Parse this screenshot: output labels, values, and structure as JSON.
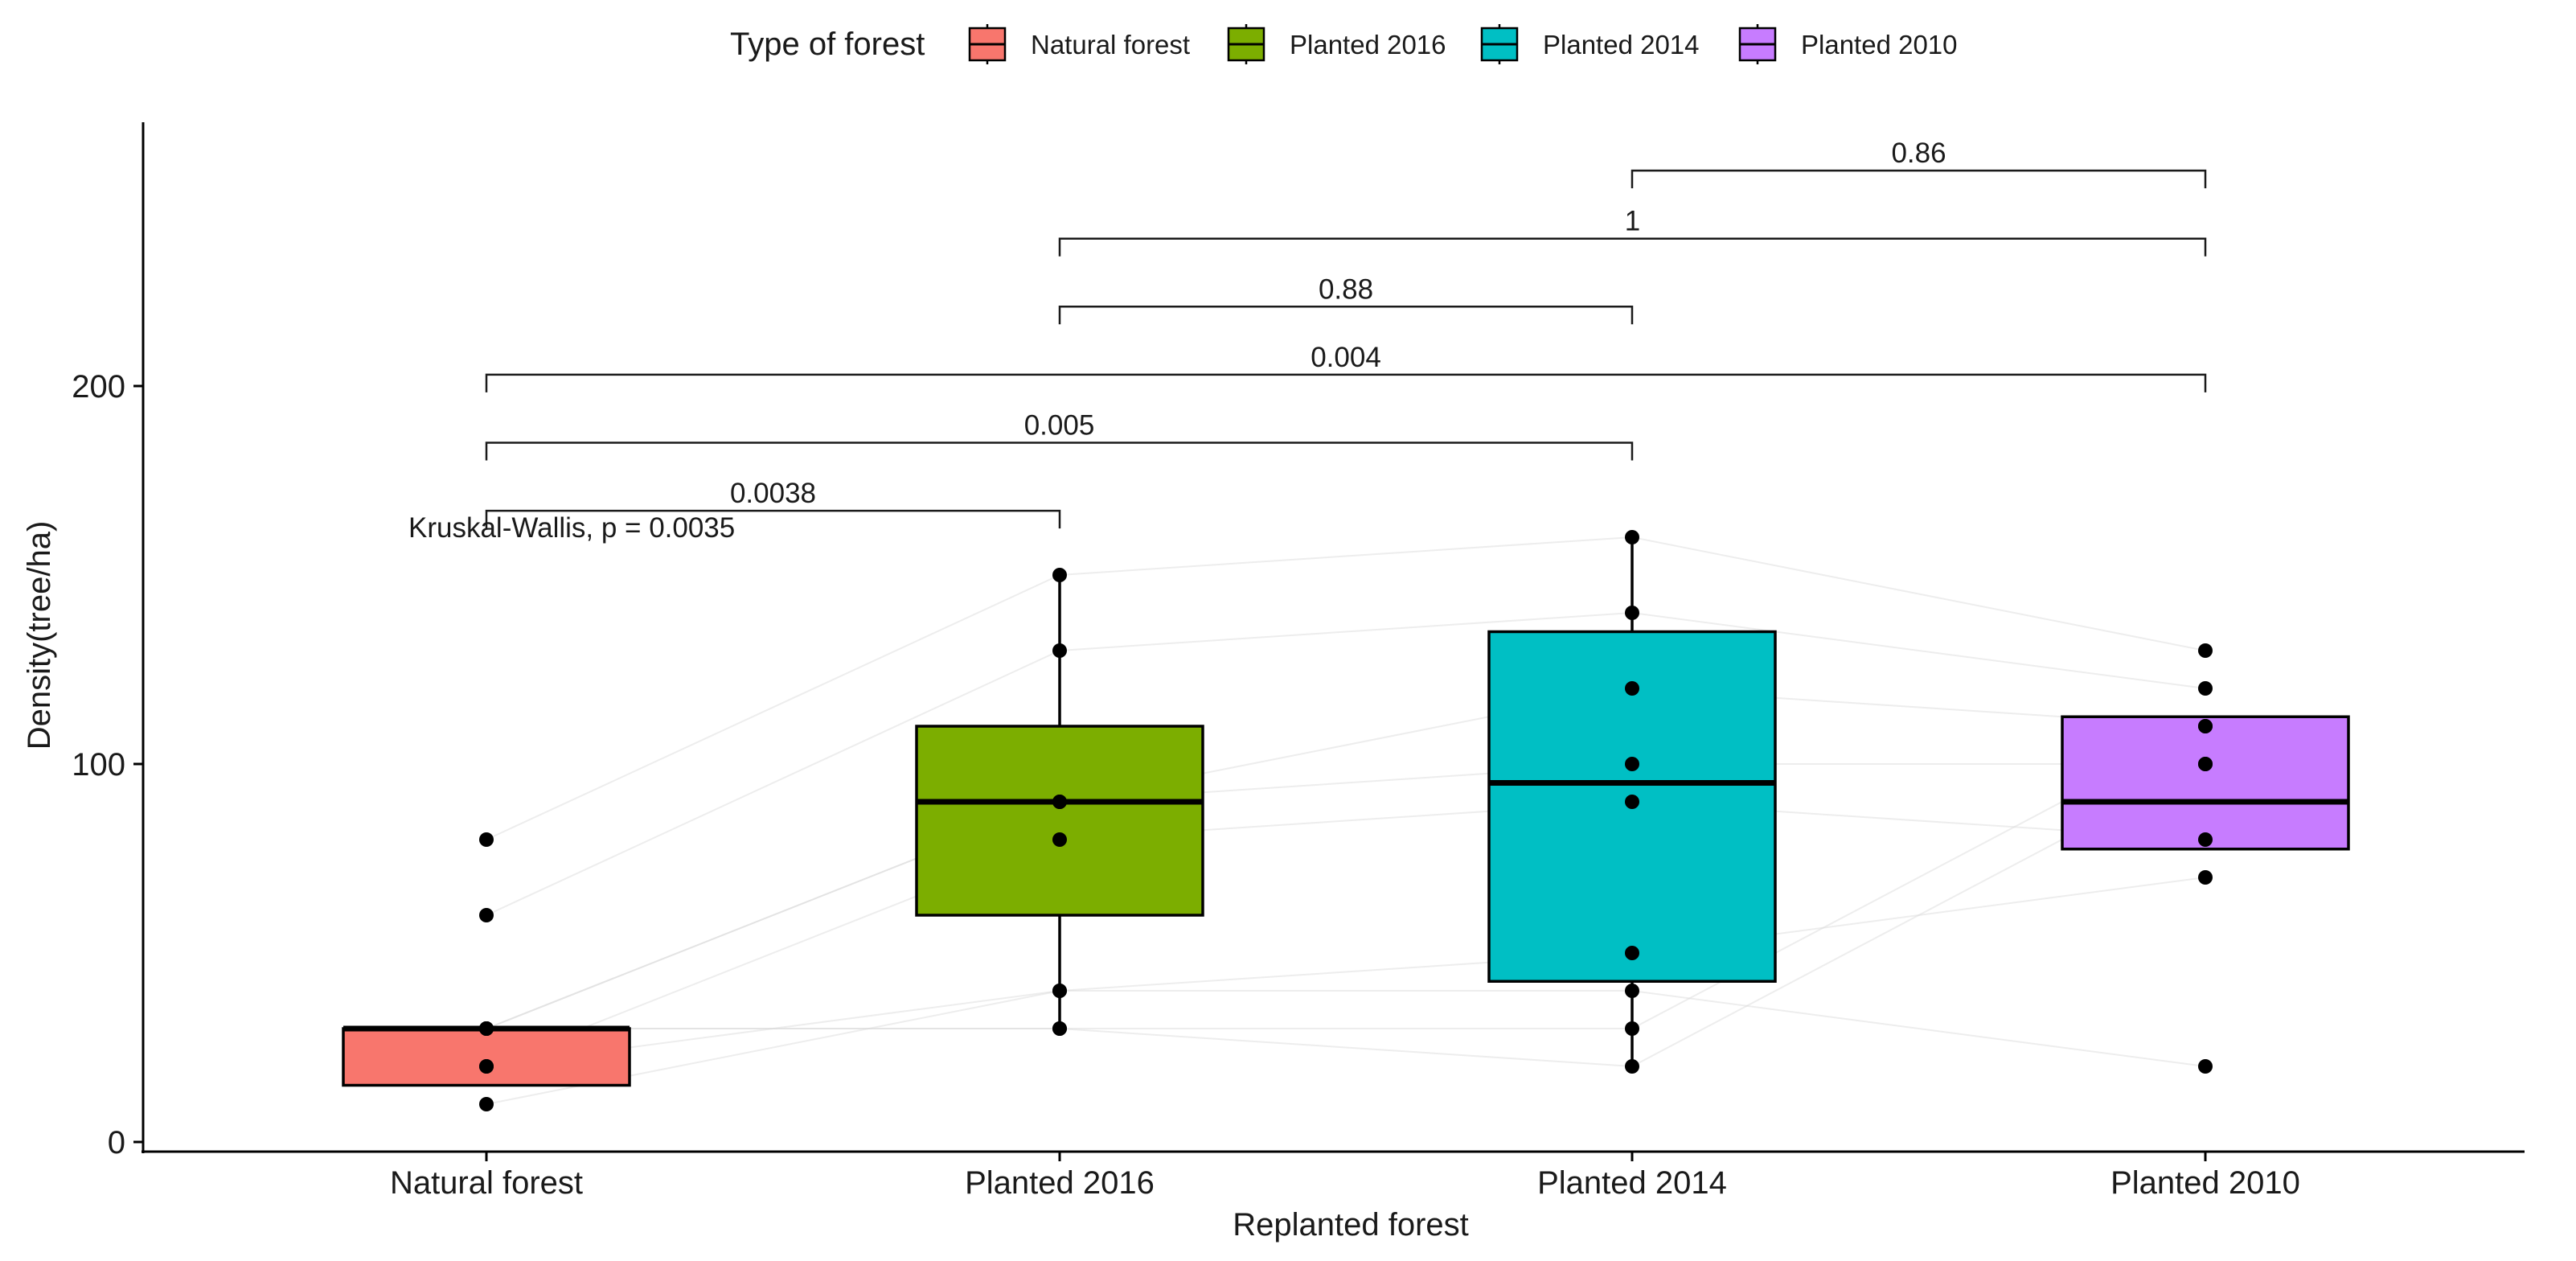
{
  "chart_data": {
    "type": "box",
    "xlabel": "Replanted forest",
    "ylabel": "Density(tree/ha)",
    "ylim": [
      -3,
      270
    ],
    "yticks": [
      0,
      100,
      200
    ],
    "categories": [
      "Natural forest",
      "Planted 2016",
      "Planted 2014",
      "Planted 2010"
    ],
    "legend": {
      "title": "Type of forest",
      "position": "top",
      "entries": [
        "Natural forest",
        "Planted 2016",
        "Planted 2014",
        "Planted 2010"
      ]
    },
    "colors": [
      "#F8766D",
      "#7CAE00",
      "#00BFC4",
      "#C77CFF"
    ],
    "grid": false,
    "boxes": [
      {
        "category": "Natural forest",
        "whisker_low": 15,
        "q1": 15,
        "median": 30,
        "q3": 30,
        "whisker_high": 30
      },
      {
        "category": "Planted 2016",
        "whisker_low": 30,
        "q1": 60,
        "median": 90,
        "q3": 110,
        "whisker_high": 150
      },
      {
        "category": "Planted 2014",
        "whisker_low": 20,
        "q1": 42.5,
        "median": 95,
        "q3": 135,
        "whisker_high": 160
      },
      {
        "category": "Planted 2010",
        "whisker_low": 77.5,
        "q1": 77.5,
        "median": 90,
        "q3": 112.5,
        "whisker_high": 112.5
      }
    ],
    "points": [
      [
        80,
        60,
        30,
        30,
        20,
        20,
        10,
        30,
        30
      ],
      [
        150,
        130,
        90,
        90,
        80,
        40,
        40,
        30,
        30
      ],
      [
        160,
        140,
        120,
        100,
        90,
        50,
        40,
        30,
        20
      ],
      [
        130,
        120,
        110,
        100,
        80,
        70,
        20,
        110,
        100
      ]
    ],
    "kruskal_wallis": "Kruskal-Wallis, p = 0.0035",
    "comparisons": [
      {
        "from": 0,
        "to": 1,
        "label": "0.0038",
        "level": 167
      },
      {
        "from": 0,
        "to": 2,
        "label": "0.005",
        "level": 185
      },
      {
        "from": 0,
        "to": 3,
        "label": "0.004",
        "level": 203
      },
      {
        "from": 1,
        "to": 2,
        "label": "0.88",
        "level": 221
      },
      {
        "from": 1,
        "to": 3,
        "label": "1",
        "level": 239
      },
      {
        "from": 2,
        "to": 3,
        "label": "0.86",
        "level": 257
      }
    ]
  }
}
